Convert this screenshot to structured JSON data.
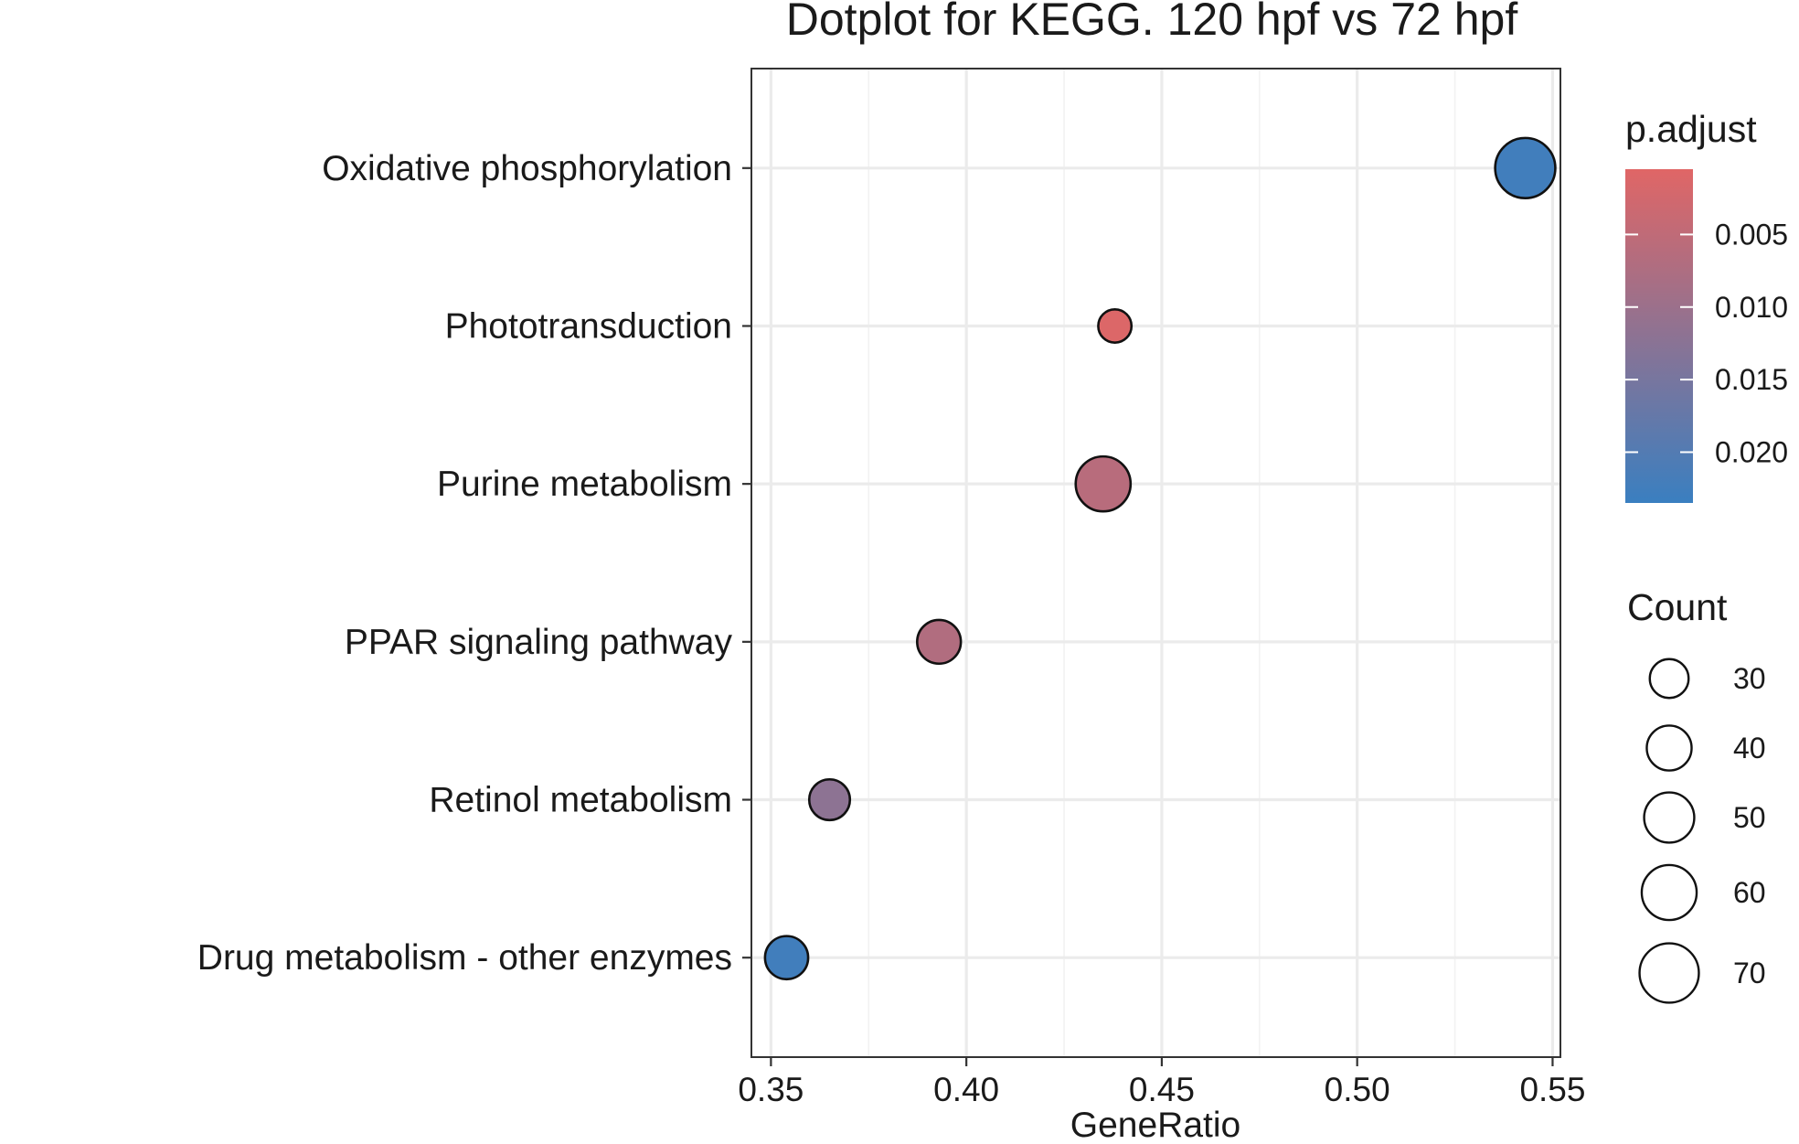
{
  "chart_data": {
    "type": "scatter",
    "title": "Dotplot for KEGG. 120 hpf vs 72 hpf",
    "xlabel": "GeneRatio",
    "ylabel": "",
    "xlim": [
      0.345,
      0.552
    ],
    "x_ticks": [
      "0.35",
      "0.40",
      "0.45",
      "0.50",
      "0.55"
    ],
    "x_tick_values": [
      0.35,
      0.4,
      0.45,
      0.5,
      0.55
    ],
    "grid": true,
    "categories": [
      "Oxidative phosphorylation",
      "Phototransduction",
      "Purine metabolism",
      "PPAR signaling pathway",
      "Retinol metabolism",
      "Drug metabolism - other enzymes"
    ],
    "points": [
      {
        "term": "Oxidative phosphorylation",
        "gene_ratio": 0.543,
        "count": 72,
        "p_adjust": 0.0225
      },
      {
        "term": "Phototransduction",
        "gene_ratio": 0.438,
        "count": 22,
        "p_adjust": 0.001
      },
      {
        "term": "Purine metabolism",
        "gene_ratio": 0.435,
        "count": 60,
        "p_adjust": 0.006
      },
      {
        "term": "PPAR signaling pathway",
        "gene_ratio": 0.393,
        "count": 38,
        "p_adjust": 0.007
      },
      {
        "term": "Retinol metabolism",
        "gene_ratio": 0.365,
        "count": 33,
        "p_adjust": 0.012
      },
      {
        "term": "Drug metabolism - other enzymes",
        "gene_ratio": 0.354,
        "count": 37,
        "p_adjust": 0.0225
      }
    ],
    "color_legend": {
      "title": "p.adjust",
      "labels": [
        "0.005",
        "0.010",
        "0.015",
        "0.020"
      ],
      "values": [
        0.005,
        0.01,
        0.015,
        0.02
      ],
      "range": [
        0.0005,
        0.0235
      ],
      "low_color": "#e06666",
      "high_color": "#3a7fc0"
    },
    "size_legend": {
      "title": "Count",
      "labels": [
        "30",
        "40",
        "50",
        "60",
        "70"
      ],
      "values": [
        30,
        40,
        50,
        60,
        70
      ]
    },
    "legend_position": "right"
  }
}
